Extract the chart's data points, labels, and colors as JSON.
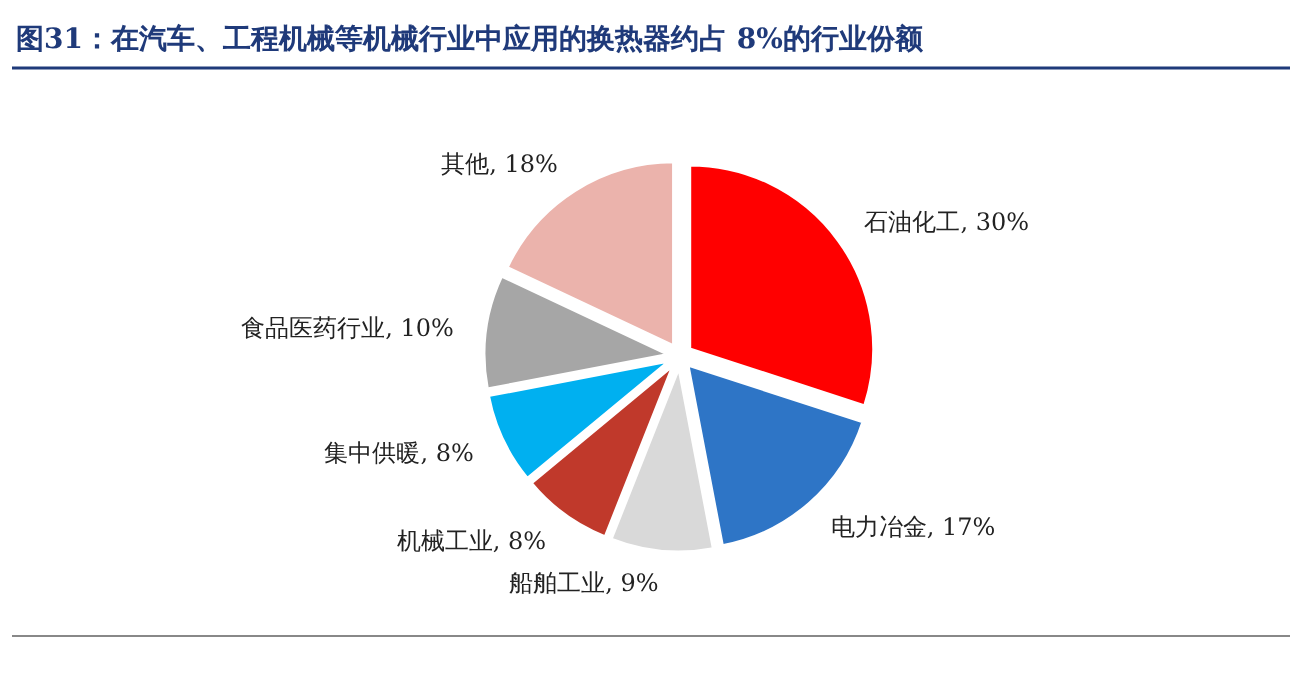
{
  "chart_data": {
    "type": "pie",
    "title": "图31：在汽车、工程机械等机械行业中应用的换热器约占 8%的行业份额",
    "categories": [
      "石油化工",
      "电力冶金",
      "船舶工业",
      "机械工业",
      "集中供暖",
      "食品医药行业",
      "其他"
    ],
    "values": [
      30,
      17,
      9,
      8,
      8,
      10,
      18
    ],
    "value_labels": [
      "30%",
      "17%",
      "9%",
      "8%",
      "8%",
      "10%",
      "18%"
    ],
    "colors": [
      "#ff0000",
      "#2e75c6",
      "#d9d9d9",
      "#c0392b",
      "#00b0f0",
      "#a6a6a6",
      "#ebb3ac"
    ]
  }
}
